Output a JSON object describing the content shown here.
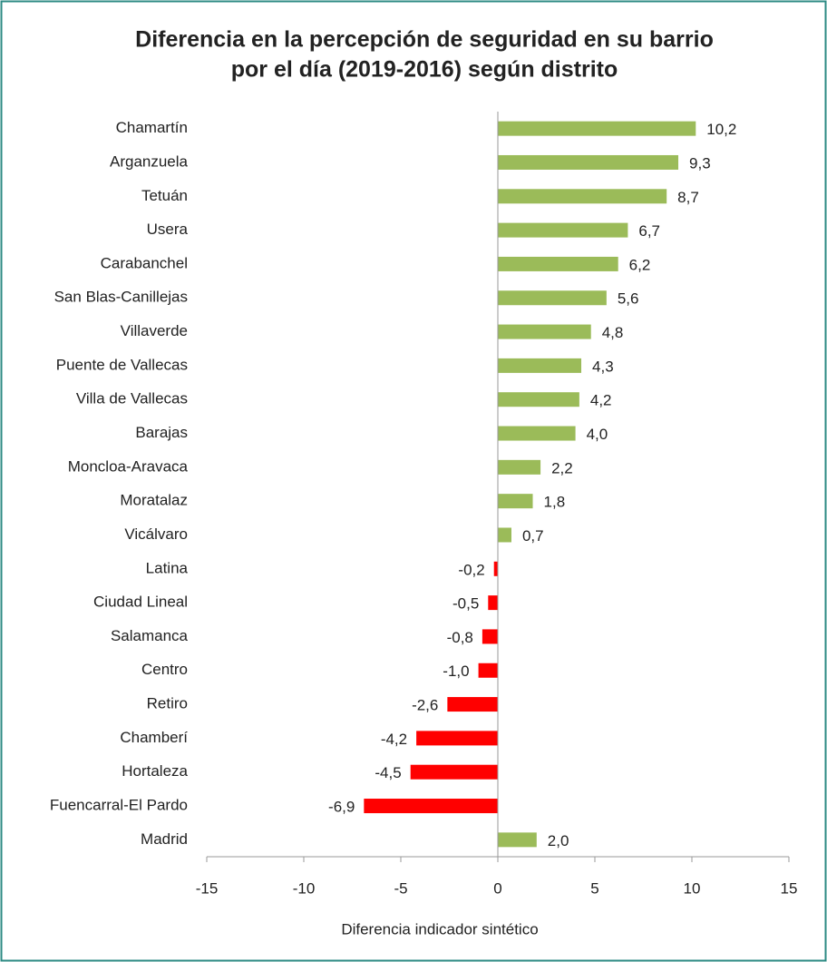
{
  "chart_data": {
    "type": "barh",
    "title": [
      "Diferencia en la percepción de seguridad en su barrio",
      "por el día (2019-2016) según distrito"
    ],
    "x_label": "Diferencia indicador sintético",
    "categories": [
      "Chamartín",
      "Arganzuela",
      "Tetuán",
      "Usera",
      "Carabanchel",
      "San Blas-Canillejas",
      "Villaverde",
      "Puente de Vallecas",
      "Villa de Vallecas",
      "Barajas",
      "Moncloa-Aravaca",
      "Moratalaz",
      "Vicálvaro",
      "Latina",
      "Ciudad Lineal",
      "Salamanca",
      "Centro",
      "Retiro",
      "Chamberí",
      "Hortaleza",
      "Fuencarral-El Pardo",
      "Madrid"
    ],
    "values": [
      10.2,
      9.3,
      8.7,
      6.7,
      6.2,
      5.6,
      4.8,
      4.3,
      4.2,
      4.0,
      2.2,
      1.8,
      0.7,
      -0.2,
      -0.5,
      -0.8,
      -1.0,
      -2.6,
      -4.2,
      -4.5,
      -6.9,
      2.0
    ],
    "value_labels": [
      "10,2",
      "9,3",
      "8,7",
      "6,7",
      "6,2",
      "5,6",
      "4,8",
      "4,3",
      "4,2",
      "4,0",
      "2,2",
      "1,8",
      "0,7",
      "-0,2",
      "-0,5",
      "-0,8",
      "-1,0",
      "-2,6",
      "-4,2",
      "-4,5",
      "-6,9",
      "2,0"
    ],
    "positive_color": "#9bbb59",
    "negative_color": "#ff0000",
    "xlim": [
      -15,
      15
    ],
    "xticks": [
      -15,
      -10,
      -5,
      0,
      5,
      10,
      15
    ]
  }
}
